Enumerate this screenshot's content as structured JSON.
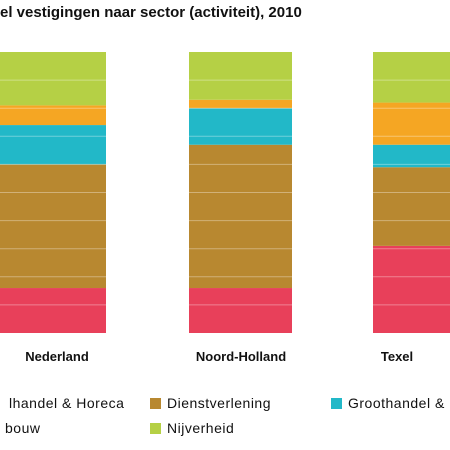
{
  "chart_data": {
    "type": "bar",
    "stacked": true,
    "normalized_percent": true,
    "title": "el vestigingen naar sector (activiteit), 2010",
    "categories": [
      "Nederland",
      "Noord-Holland",
      "Texel"
    ],
    "ylim": [
      0,
      100
    ],
    "grid": true,
    "legend_position": "bottom",
    "series": [
      {
        "name": "lhandel & Horeca",
        "color": "#e8405a",
        "values": [
          16,
          16,
          31
        ]
      },
      {
        "name": "Dienstverlening",
        "color": "#b88830",
        "values": [
          44,
          51,
          28
        ]
      },
      {
        "name": "Groothandel &",
        "color": "#22b8c8",
        "values": [
          14,
          13,
          8
        ]
      },
      {
        "name": "",
        "color": "#f5a623",
        "values": [
          7,
          3,
          15
        ]
      },
      {
        "name": "",
        "color": "#b5d045",
        "values": [
          19,
          17,
          18
        ]
      }
    ],
    "legend": [
      {
        "label": "lhandel & Horeca",
        "color": "#e8405a"
      },
      {
        "label": "Dienstverlening",
        "color": "#b88830"
      },
      {
        "label": "Groothandel &",
        "color": "#22b8c8"
      },
      {
        "label": "bouw",
        "color": "#f5a623"
      },
      {
        "label": "Nijverheid",
        "color": "#b5d045"
      }
    ]
  }
}
